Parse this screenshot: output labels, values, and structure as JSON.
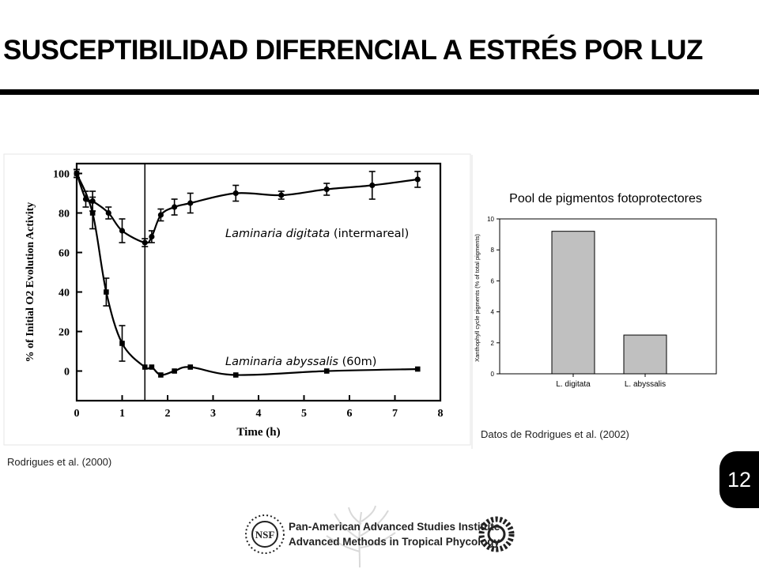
{
  "slide": {
    "title": "SUSCEPTIBILIDAD DIFERENCIAL A ESTRÉS POR LUZ",
    "page_number": "12",
    "credit_left": "Rodrigues et al. (2000)",
    "credit_right": "Datos de Rodrigues et al. (2002)",
    "footer": {
      "line1": "Pan-American Advanced Studies Institute",
      "line2": "Advanced Methods in Tropical Phycology",
      "logo_left_text": "NSF"
    }
  },
  "colors": {
    "bar_fill": "#c0c0c0",
    "ink": "#000000"
  },
  "chart_data": [
    {
      "type": "line",
      "xlabel": "Time (h)",
      "ylabel": "% of Initial O2 Evolution Activity",
      "xlim": [
        0,
        8
      ],
      "ylim": [
        -15,
        105
      ],
      "xticks": [
        0,
        1,
        2,
        3,
        4,
        5,
        6,
        7,
        8
      ],
      "yticks": [
        0,
        20,
        40,
        60,
        80,
        100
      ],
      "vline_x": 1.5,
      "grid": false,
      "series": [
        {
          "name": "Laminaria digitata",
          "label_suffix": "(intermareal)",
          "x": [
            0,
            0.2,
            0.35,
            0.7,
            1.0,
            1.5,
            1.65,
            1.85,
            2.15,
            2.5,
            3.5,
            4.5,
            5.5,
            6.5,
            7.5
          ],
          "y": [
            100,
            87,
            86,
            80,
            71,
            65,
            68,
            79,
            83,
            85,
            90,
            89,
            92,
            94,
            97
          ],
          "err": [
            2,
            4,
            5,
            3,
            6,
            2,
            3,
            3,
            4,
            5,
            4,
            2,
            3,
            7,
            4
          ]
        },
        {
          "name": "Laminaria abyssalis",
          "label_suffix": "(60m)",
          "x": [
            0,
            0.35,
            0.65,
            1.0,
            1.5,
            1.65,
            1.85,
            2.15,
            2.5,
            3.5,
            5.5,
            7.5
          ],
          "y": [
            100,
            80,
            40,
            14,
            2,
            2,
            -2,
            0,
            2,
            -2,
            0,
            1
          ],
          "err": [
            2,
            8,
            7,
            9,
            1,
            1,
            1,
            1,
            1,
            1,
            1,
            1
          ]
        }
      ]
    },
    {
      "type": "bar",
      "title": "Pool de pigmentos fotoprotectores",
      "ylabel": "Xanthophyll cycle pigments (% of total pigments)",
      "categories": [
        "L. digitata",
        "L. abyssalis"
      ],
      "values": [
        9.2,
        2.5
      ],
      "ylim": [
        0,
        10
      ],
      "yticks": [
        0,
        2,
        4,
        6,
        8,
        10
      ]
    }
  ]
}
